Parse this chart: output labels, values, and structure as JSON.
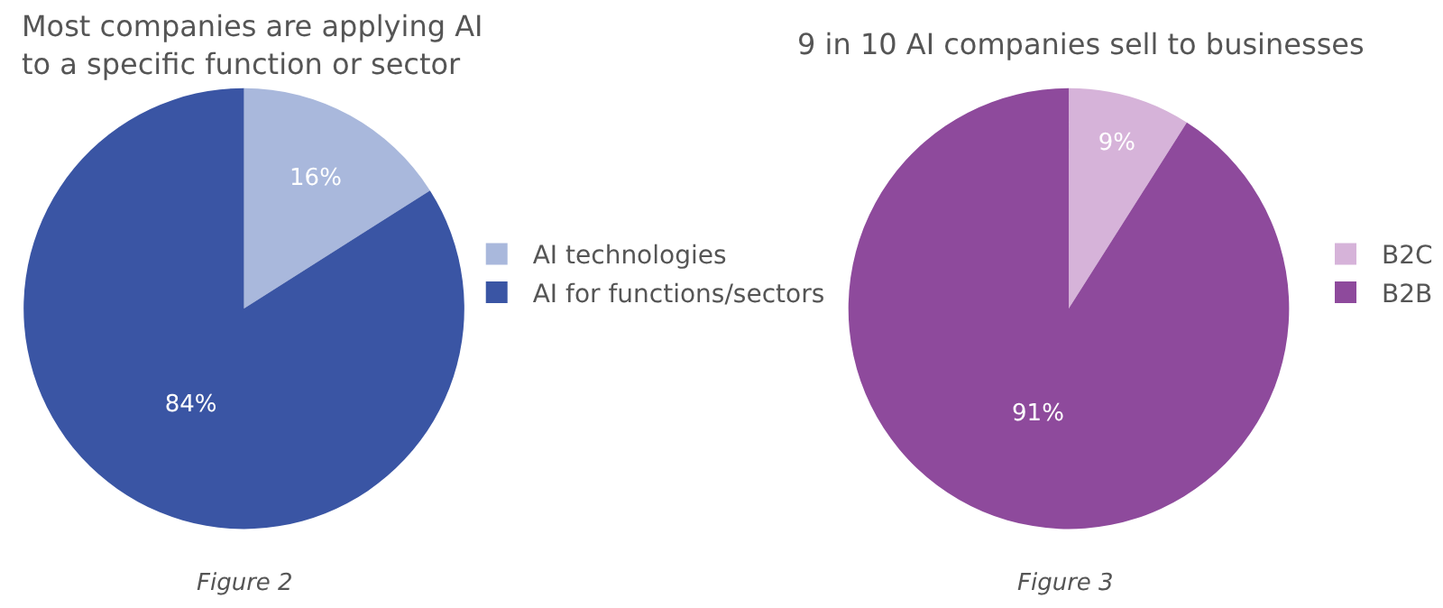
{
  "chart_data": [
    {
      "type": "pie",
      "title": "Most companies are applying AI\nto a specific function or sector",
      "categories": [
        "AI technologies",
        "AI for functions/sectors"
      ],
      "values": [
        16,
        84
      ],
      "colors": [
        "#a9b8dc",
        "#3a55a4"
      ],
      "value_labels": [
        "16%",
        "84%"
      ],
      "legend": "right",
      "annotations": [
        "Figure 2"
      ]
    },
    {
      "type": "pie",
      "title": "9 in 10 AI companies sell to businesses",
      "categories": [
        "B2C",
        "B2B"
      ],
      "values": [
        9,
        91
      ],
      "colors": [
        "#d6b3d9",
        "#8e4a9c"
      ],
      "value_labels": [
        "9%",
        "91%"
      ],
      "legend": "right",
      "annotations": [
        "Figure 3"
      ]
    }
  ]
}
